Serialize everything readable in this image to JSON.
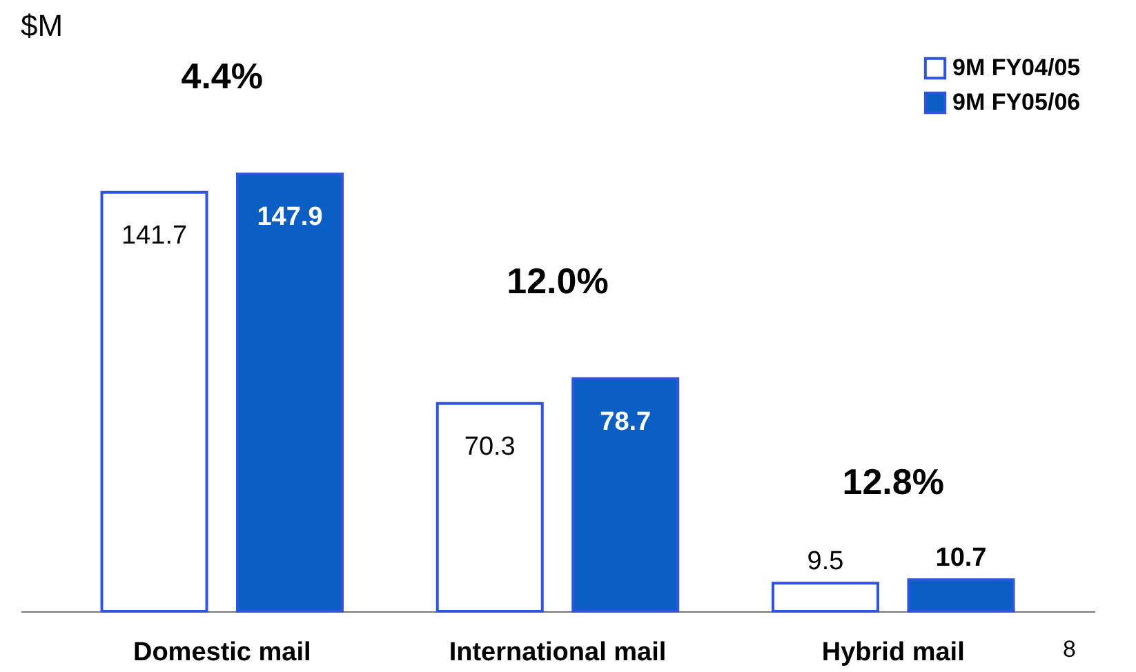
{
  "chart_data": {
    "type": "bar",
    "ylabel": "$M",
    "categories": [
      "Domestic mail",
      "International mail",
      "Hybrid mail"
    ],
    "series": [
      {
        "name": "9M FY04/05",
        "color": "#ffffff",
        "values": [
          141.7,
          70.3,
          9.5
        ]
      },
      {
        "name": "9M FY05/06",
        "color": "#0b5fc4",
        "values": [
          147.9,
          78.7,
          10.7
        ]
      }
    ],
    "data_labels": true,
    "legend": "top right",
    "grid": false,
    "annotations": [
      "4.4%",
      "12.0%",
      "12.8%",
      "8"
    ]
  }
}
